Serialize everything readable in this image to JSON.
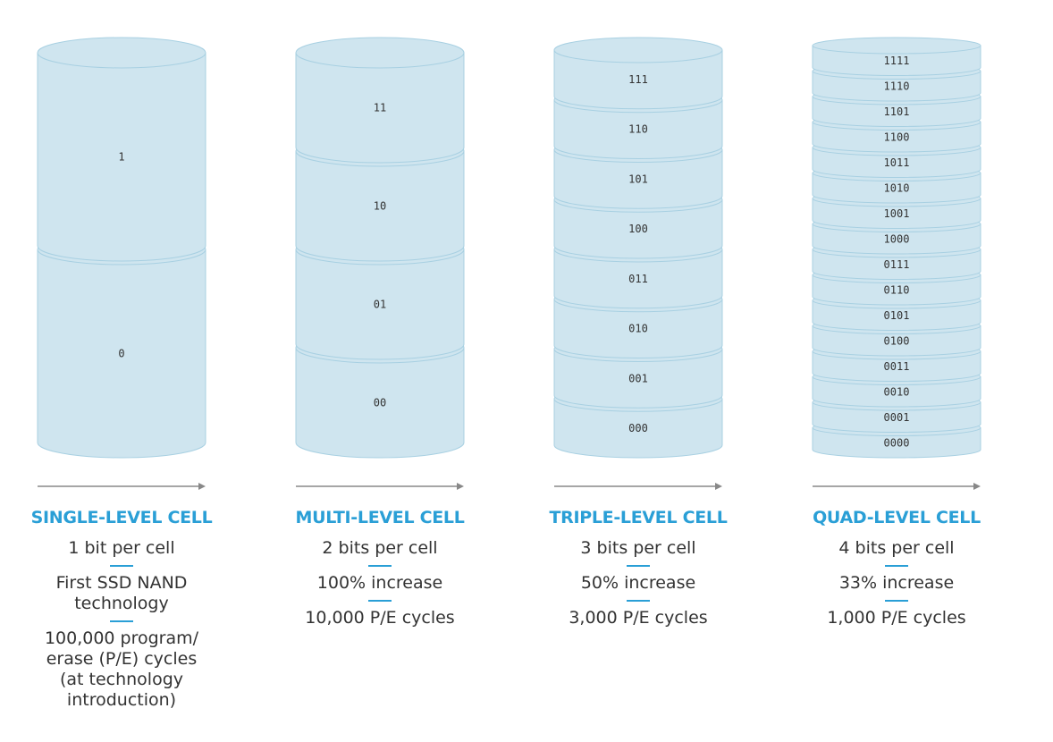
{
  "colors": {
    "cylinder_fill": "#cfe5ef",
    "cylinder_stroke": "#a8d0e2",
    "arrow": "#888888",
    "title": "#2a9fd6",
    "separator": "#2a9fd6",
    "body_text": "#333333"
  },
  "columns": [
    {
      "title": "SINGLE-LEVEL CELL",
      "bits_per_cell": 1,
      "labels": [
        "1",
        "0"
      ],
      "lines": [
        "1 bit per cell",
        "First SSD NAND technology",
        "100,000 program/ erase (P/E) cycles (at technology introduction)"
      ]
    },
    {
      "title": "MULTI-LEVEL CELL",
      "bits_per_cell": 2,
      "labels": [
        "11",
        "10",
        "01",
        "00"
      ],
      "lines": [
        "2 bits per cell",
        "100% increase",
        "10,000 P/E cycles"
      ]
    },
    {
      "title": "TRIPLE-LEVEL CELL",
      "bits_per_cell": 3,
      "labels": [
        "111",
        "110",
        "101",
        "100",
        "011",
        "010",
        "001",
        "000"
      ],
      "lines": [
        "3 bits per cell",
        "50% increase",
        "3,000 P/E cycles"
      ]
    },
    {
      "title": "QUAD-LEVEL CELL",
      "bits_per_cell": 4,
      "labels": [
        "1111",
        "1110",
        "1101",
        "1100",
        "1011",
        "1010",
        "1001",
        "1000",
        "0111",
        "0110",
        "0101",
        "0100",
        "0011",
        "0010",
        "0001",
        "0000"
      ],
      "lines": [
        "4 bits per cell",
        "33% increase",
        "1,000 P/E cycles"
      ]
    }
  ]
}
